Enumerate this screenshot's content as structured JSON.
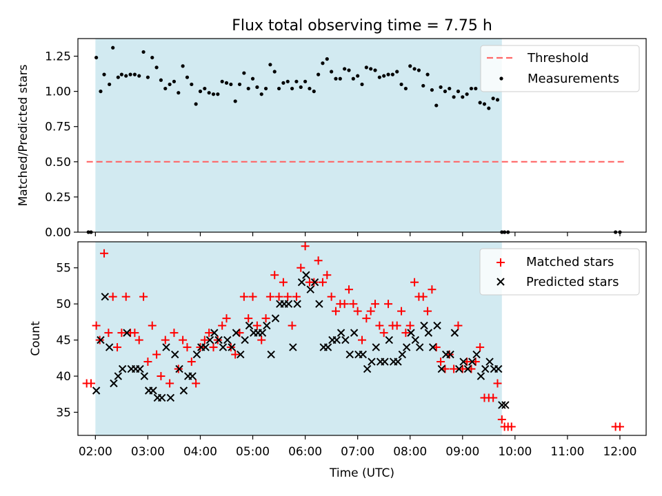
{
  "title": "Flux total observing time = 7.75 h",
  "colors": {
    "observing_span": "#add8e6",
    "threshold": "#ff6666",
    "measurements": "#000000",
    "matched": "#ff0000",
    "predicted": "#000000"
  },
  "chart_data": [
    {
      "type": "scatter",
      "panel": "top",
      "title": "Flux total observing time = 7.75 h",
      "ylabel": "Matched/Predicted stars",
      "xlabel": "",
      "xlim": [
        "01:40",
        "12:30"
      ],
      "ylim": [
        0,
        1.375
      ],
      "yticks": [
        0.0,
        0.25,
        0.5,
        0.75,
        1.0,
        1.25
      ],
      "ytick_labels": [
        "0.00",
        "0.25",
        "0.50",
        "0.75",
        "1.00",
        "1.25"
      ],
      "shaded_span": {
        "x_start": "02:00",
        "x_end": "09:45"
      },
      "legend": {
        "position": "top-right",
        "entries": [
          "Threshold",
          "Measurements"
        ]
      },
      "series": [
        {
          "name": "Threshold",
          "kind": "line",
          "style": "dashed",
          "x": [
            "01:50",
            "12:05"
          ],
          "y": [
            0.5,
            0.5
          ]
        },
        {
          "name": "Measurements",
          "kind": "points",
          "marker": "dot",
          "x": [
            "01:52",
            "01:55",
            "02:01",
            "02:06",
            "02:10",
            "02:16",
            "02:20",
            "02:26",
            "02:30",
            "02:35",
            "02:40",
            "02:45",
            "02:50",
            "02:55",
            "03:00",
            "03:05",
            "03:10",
            "03:15",
            "03:20",
            "03:25",
            "03:30",
            "03:35",
            "03:40",
            "03:45",
            "03:50",
            "03:55",
            "04:00",
            "04:05",
            "04:10",
            "04:15",
            "04:20",
            "04:25",
            "04:30",
            "04:35",
            "04:40",
            "04:45",
            "04:50",
            "04:55",
            "05:00",
            "05:05",
            "05:10",
            "05:15",
            "05:20",
            "05:25",
            "05:30",
            "05:35",
            "05:40",
            "05:45",
            "05:50",
            "05:55",
            "06:00",
            "06:05",
            "06:10",
            "06:15",
            "06:20",
            "06:25",
            "06:30",
            "06:35",
            "06:40",
            "06:45",
            "06:50",
            "06:55",
            "07:00",
            "07:05",
            "07:10",
            "07:15",
            "07:20",
            "07:25",
            "07:30",
            "07:35",
            "07:40",
            "07:45",
            "07:50",
            "07:55",
            "08:00",
            "08:05",
            "08:10",
            "08:15",
            "08:20",
            "08:25",
            "08:30",
            "08:35",
            "08:40",
            "08:45",
            "08:50",
            "08:55",
            "09:00",
            "09:05",
            "09:10",
            "09:15",
            "09:20",
            "09:25",
            "09:30",
            "09:35",
            "09:40",
            "09:45",
            "09:48",
            "09:52",
            "11:55",
            "12:00"
          ],
          "y": [
            0.0,
            0.0,
            1.24,
            1.0,
            1.12,
            1.05,
            1.31,
            1.1,
            1.12,
            1.11,
            1.12,
            1.12,
            1.11,
            1.28,
            1.1,
            1.24,
            1.17,
            1.08,
            1.02,
            1.05,
            1.07,
            0.99,
            1.18,
            1.1,
            1.05,
            0.91,
            1.0,
            1.02,
            0.99,
            0.98,
            0.98,
            1.07,
            1.06,
            1.05,
            0.93,
            1.05,
            1.13,
            1.02,
            1.09,
            1.03,
            0.98,
            1.02,
            1.19,
            1.14,
            1.02,
            1.06,
            1.07,
            1.02,
            1.07,
            1.03,
            1.07,
            1.02,
            1.0,
            1.12,
            1.2,
            1.23,
            1.14,
            1.09,
            1.09,
            1.16,
            1.15,
            1.09,
            1.11,
            1.05,
            1.17,
            1.16,
            1.15,
            1.1,
            1.11,
            1.12,
            1.12,
            1.14,
            1.05,
            1.02,
            1.18,
            1.16,
            1.15,
            1.04,
            1.12,
            1.01,
            0.9,
            1.03,
            1.0,
            1.02,
            0.96,
            1.0,
            0.96,
            0.98,
            1.02,
            1.02,
            0.92,
            0.91,
            0.88,
            0.95,
            0.94,
            0.0,
            0.0,
            0.0,
            0.0,
            0.0
          ]
        }
      ]
    },
    {
      "type": "scatter",
      "panel": "bottom",
      "xlabel": "Time (UTC)",
      "ylabel": "Count",
      "xlim": [
        "01:40",
        "12:30"
      ],
      "ylim": [
        31.8,
        58.6
      ],
      "xticks": [
        "02:00",
        "03:00",
        "04:00",
        "05:00",
        "06:00",
        "07:00",
        "08:00",
        "09:00",
        "10:00",
        "11:00",
        "12:00"
      ],
      "yticks": [
        35,
        40,
        45,
        50,
        55
      ],
      "ytick_labels": [
        "35",
        "40",
        "45",
        "50",
        "55"
      ],
      "shaded_span": {
        "x_start": "02:00",
        "x_end": "09:45"
      },
      "legend": {
        "position": "top-right",
        "entries": [
          "Matched stars",
          "Predicted stars"
        ]
      },
      "series": [
        {
          "name": "Matched stars",
          "marker": "plus",
          "x": [
            "01:50",
            "01:55",
            "02:01",
            "02:05",
            "02:10",
            "02:15",
            "02:20",
            "02:25",
            "02:30",
            "02:35",
            "02:40",
            "02:45",
            "02:50",
            "02:55",
            "03:00",
            "03:05",
            "03:10",
            "03:15",
            "03:20",
            "03:25",
            "03:30",
            "03:35",
            "03:40",
            "03:45",
            "03:50",
            "03:55",
            "04:00",
            "04:05",
            "04:10",
            "04:15",
            "04:20",
            "04:25",
            "04:30",
            "04:35",
            "04:40",
            "04:45",
            "04:50",
            "04:55",
            "05:00",
            "05:05",
            "05:10",
            "05:15",
            "05:20",
            "05:25",
            "05:30",
            "05:35",
            "05:40",
            "05:45",
            "05:50",
            "05:55",
            "06:00",
            "06:05",
            "06:10",
            "06:15",
            "06:20",
            "06:25",
            "06:30",
            "06:35",
            "06:40",
            "06:45",
            "06:50",
            "06:55",
            "07:00",
            "07:05",
            "07:10",
            "07:15",
            "07:20",
            "07:25",
            "07:30",
            "07:35",
            "07:40",
            "07:45",
            "07:50",
            "07:55",
            "08:00",
            "08:05",
            "08:10",
            "08:15",
            "08:20",
            "08:25",
            "08:30",
            "08:35",
            "08:40",
            "08:45",
            "08:50",
            "08:55",
            "09:00",
            "09:05",
            "09:10",
            "09:15",
            "09:20",
            "09:25",
            "09:30",
            "09:35",
            "09:40",
            "09:45",
            "09:48",
            "09:52",
            "09:56",
            "11:55",
            "12:00"
          ],
          "y": [
            39,
            39,
            47,
            45,
            57,
            46,
            51,
            44,
            46,
            51,
            46,
            46,
            45,
            51,
            42,
            47,
            43,
            40,
            45,
            39,
            46,
            41,
            45,
            44,
            42,
            39,
            44,
            45,
            46,
            44,
            45,
            47,
            48,
            44,
            43,
            46,
            51,
            48,
            51,
            47,
            45,
            48,
            51,
            54,
            51,
            53,
            51,
            47,
            51,
            55,
            58,
            53,
            53,
            56,
            53,
            54,
            51,
            49,
            50,
            50,
            52,
            50,
            49,
            45,
            48,
            49,
            50,
            47,
            46,
            50,
            47,
            47,
            49,
            46,
            47,
            53,
            51,
            51,
            49,
            52,
            44,
            42,
            41,
            43,
            41,
            47,
            41,
            42,
            41,
            42,
            44,
            37,
            37,
            37,
            39,
            34,
            33,
            33,
            33,
            33,
            33
          ]
        },
        {
          "name": "Predicted stars",
          "marker": "cross",
          "x": [
            "02:01",
            "02:06",
            "02:11",
            "02:16",
            "02:21",
            "02:26",
            "02:31",
            "02:36",
            "02:41",
            "02:46",
            "02:51",
            "02:56",
            "03:01",
            "03:06",
            "03:11",
            "03:16",
            "03:21",
            "03:26",
            "03:31",
            "03:36",
            "03:41",
            "03:46",
            "03:51",
            "03:56",
            "04:01",
            "04:06",
            "04:11",
            "04:16",
            "04:21",
            "04:26",
            "04:31",
            "04:36",
            "04:41",
            "04:46",
            "04:51",
            "04:56",
            "05:01",
            "05:06",
            "05:11",
            "05:16",
            "05:21",
            "05:26",
            "05:31",
            "05:36",
            "05:41",
            "05:46",
            "05:51",
            "05:56",
            "06:01",
            "06:06",
            "06:11",
            "06:16",
            "06:21",
            "06:26",
            "06:31",
            "06:36",
            "06:41",
            "06:46",
            "06:51",
            "06:56",
            "07:01",
            "07:06",
            "07:11",
            "07:16",
            "07:21",
            "07:26",
            "07:31",
            "07:36",
            "07:41",
            "07:46",
            "07:51",
            "07:56",
            "08:01",
            "08:06",
            "08:11",
            "08:16",
            "08:21",
            "08:26",
            "08:31",
            "08:36",
            "08:41",
            "08:46",
            "08:51",
            "08:56",
            "09:01",
            "09:06",
            "09:11",
            "09:16",
            "09:21",
            "09:26",
            "09:31",
            "09:36",
            "09:41",
            "09:45",
            "09:49"
          ],
          "y": [
            38,
            45,
            51,
            44,
            39,
            40,
            41,
            46,
            41,
            41,
            41,
            40,
            38,
            38,
            37,
            37,
            44,
            37,
            43,
            41,
            38,
            40,
            40,
            43,
            44,
            44,
            45,
            46,
            45,
            44,
            45,
            44,
            46,
            43,
            45,
            47,
            46,
            46,
            46,
            47,
            43,
            48,
            50,
            50,
            50,
            44,
            50,
            53,
            54,
            52,
            53,
            50,
            44,
            44,
            45,
            45,
            46,
            45,
            43,
            46,
            43,
            43,
            41,
            42,
            44,
            42,
            42,
            45,
            42,
            42,
            43,
            44,
            46,
            45,
            44,
            47,
            46,
            44,
            47,
            41,
            43,
            43,
            46,
            41,
            42,
            41,
            42,
            43,
            40,
            41,
            42,
            41,
            41,
            36,
            36
          ]
        }
      ]
    }
  ]
}
